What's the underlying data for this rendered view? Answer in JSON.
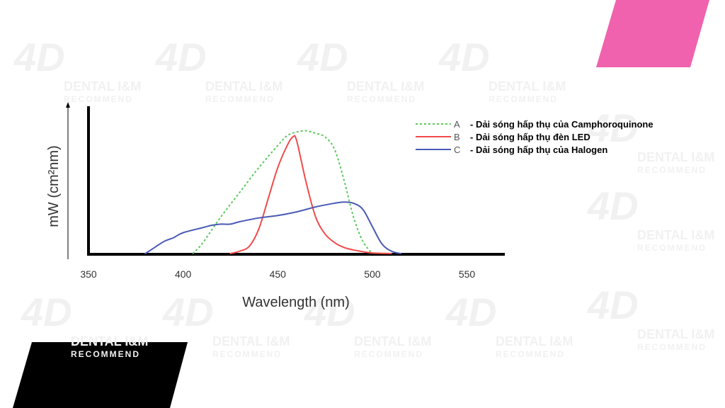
{
  "colors": {
    "pink_accent": "#f062ad",
    "black_accent": "#000000",
    "series_A": "#5cc95c",
    "series_B": "#f04a4a",
    "series_C": "#4a5ab4",
    "watermark": "#f1f1f1"
  },
  "watermark": {
    "brand": "DENTAL I&M",
    "sub": "RECOMMEND",
    "mark": "4D"
  },
  "chart_data": {
    "type": "line",
    "xlabel": "Wavelength (nm)",
    "ylabel": "mW (cm²nm)",
    "xlim": [
      350,
      570
    ],
    "ylim": [
      0,
      1.2
    ],
    "xticks": [
      350,
      400,
      450,
      500,
      550
    ],
    "grid": false,
    "legend_position": "top-right",
    "series": [
      {
        "name": "A",
        "description": "- Dải sóng hấp thụ của Camphoroquinone",
        "color": "#5cc95c",
        "style": "dotted",
        "x": [
          405,
          410,
          420,
          430,
          440,
          450,
          455,
          460,
          465,
          470,
          475,
          480,
          485,
          490,
          495,
          500
        ],
        "y": [
          0,
          0.08,
          0.3,
          0.5,
          0.7,
          0.88,
          0.96,
          0.99,
          1.0,
          0.98,
          0.95,
          0.85,
          0.6,
          0.3,
          0.1,
          0.0
        ]
      },
      {
        "name": "B",
        "description": "- Dải sóng hấp thụ đèn LED",
        "color": "#f04a4a",
        "style": "solid",
        "x": [
          425,
          430,
          435,
          440,
          445,
          450,
          455,
          458,
          460,
          465,
          470,
          475,
          480,
          485,
          490,
          495,
          500,
          505,
          510
        ],
        "y": [
          0,
          0.02,
          0.06,
          0.2,
          0.45,
          0.7,
          0.88,
          0.95,
          0.92,
          0.58,
          0.3,
          0.16,
          0.09,
          0.05,
          0.03,
          0.015,
          0.005,
          0.002,
          0
        ]
      },
      {
        "name": "C",
        "description": "- Dải sóng hấp thụ của Halogen",
        "color": "#4a5ab4",
        "style": "solid",
        "x": [
          380,
          385,
          390,
          395,
          400,
          410,
          415,
          420,
          425,
          430,
          440,
          450,
          460,
          470,
          480,
          485,
          490,
          495,
          500,
          505,
          510,
          515
        ],
        "y": [
          0,
          0.05,
          0.1,
          0.13,
          0.17,
          0.21,
          0.23,
          0.24,
          0.24,
          0.26,
          0.29,
          0.31,
          0.34,
          0.38,
          0.41,
          0.42,
          0.41,
          0.36,
          0.22,
          0.08,
          0.02,
          0
        ]
      }
    ]
  }
}
